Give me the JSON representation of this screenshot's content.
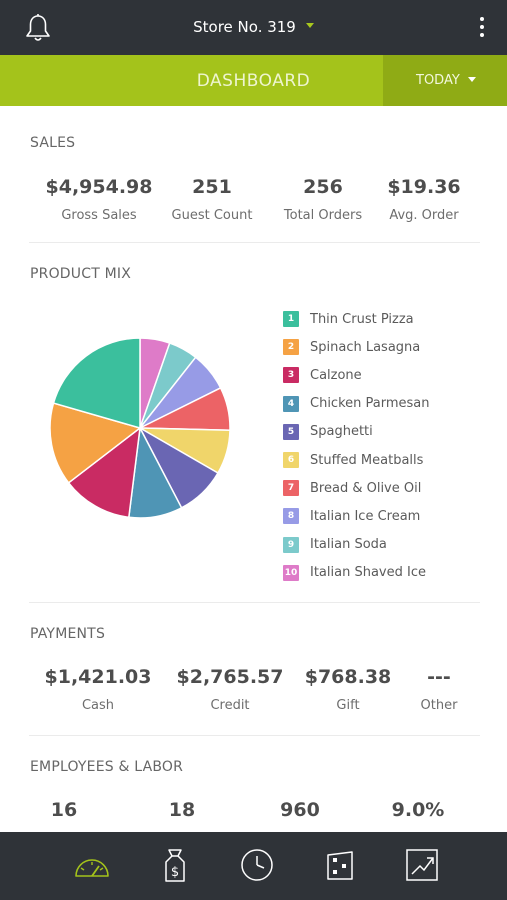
{
  "header": {
    "store_label": "Store No. 319",
    "icons": [
      "bell-icon",
      "caret-down-icon",
      "kebab-menu-icon"
    ]
  },
  "subheader": {
    "title": "DASHBOARD",
    "period_label": "TODAY",
    "accent_color": "#a4c31b"
  },
  "sales": {
    "title": "SALES",
    "metrics": [
      {
        "value": "$4,954.98",
        "label": "Gross Sales"
      },
      {
        "value": "251",
        "label": "Guest Count"
      },
      {
        "value": "256",
        "label": "Total Orders"
      },
      {
        "value": "$19.36",
        "label": "Avg. Order"
      }
    ]
  },
  "product_mix": {
    "title": "PRODUCT MIX",
    "items": [
      {
        "num": "1",
        "label": "Thin Crust Pizza",
        "color": "#3bbf9d"
      },
      {
        "num": "2",
        "label": "Spinach Lasagna",
        "color": "#f5a244"
      },
      {
        "num": "3",
        "label": "Calzone",
        "color": "#c92b63"
      },
      {
        "num": "4",
        "label": "Chicken Parmesan",
        "color": "#4f95b5"
      },
      {
        "num": "5",
        "label": "Spaghetti",
        "color": "#6a66b3"
      },
      {
        "num": "6",
        "label": "Stuffed Meatballs",
        "color": "#f0d56a"
      },
      {
        "num": "7",
        "label": "Bread & Olive Oil",
        "color": "#ec6366"
      },
      {
        "num": "8",
        "label": "Italian Ice Cream",
        "color": "#979be6"
      },
      {
        "num": "9",
        "label": "Italian Soda",
        "color": "#7ccacb"
      },
      {
        "num": "10",
        "label": "Italian Shaved Ice",
        "color": "#de7bc8"
      }
    ]
  },
  "chart_data": {
    "type": "pie",
    "labels": [
      "Thin Crust Pizza",
      "Spinach Lasagna",
      "Calzone",
      "Chicken Parmesan",
      "Spaghetti",
      "Stuffed Meatballs",
      "Bread & Olive Oil",
      "Italian Ice Cream",
      "Italian Soda",
      "Italian Shaved Ice"
    ],
    "values": [
      20.7,
      15.0,
      12.7,
      9.7,
      9.1,
      8.0,
      7.8,
      7.1,
      5.3,
      5.4
    ],
    "colors": [
      "#3bbf9d",
      "#f5a244",
      "#c92b63",
      "#4f95b5",
      "#6a66b3",
      "#f0d56a",
      "#ec6366",
      "#979be6",
      "#7ccacb",
      "#de7bc8"
    ]
  },
  "payments": {
    "title": "PAYMENTS",
    "metrics": [
      {
        "value": "$1,421.03",
        "label": "Cash"
      },
      {
        "value": "$2,765.57",
        "label": "Credit"
      },
      {
        "value": "$768.38",
        "label": "Gift"
      },
      {
        "value": "---",
        "label": "Other"
      }
    ]
  },
  "labor": {
    "title": "EMPLOYEES & LABOR",
    "metrics": [
      {
        "value": "16"
      },
      {
        "value": "18"
      },
      {
        "value": "960"
      },
      {
        "value": "9.0%"
      }
    ]
  },
  "bottom_nav": {
    "active_color": "#a4c31b",
    "items": [
      "speedometer-icon",
      "money-bag-icon",
      "clock-icon",
      "register-icon",
      "trend-chart-icon"
    ]
  }
}
